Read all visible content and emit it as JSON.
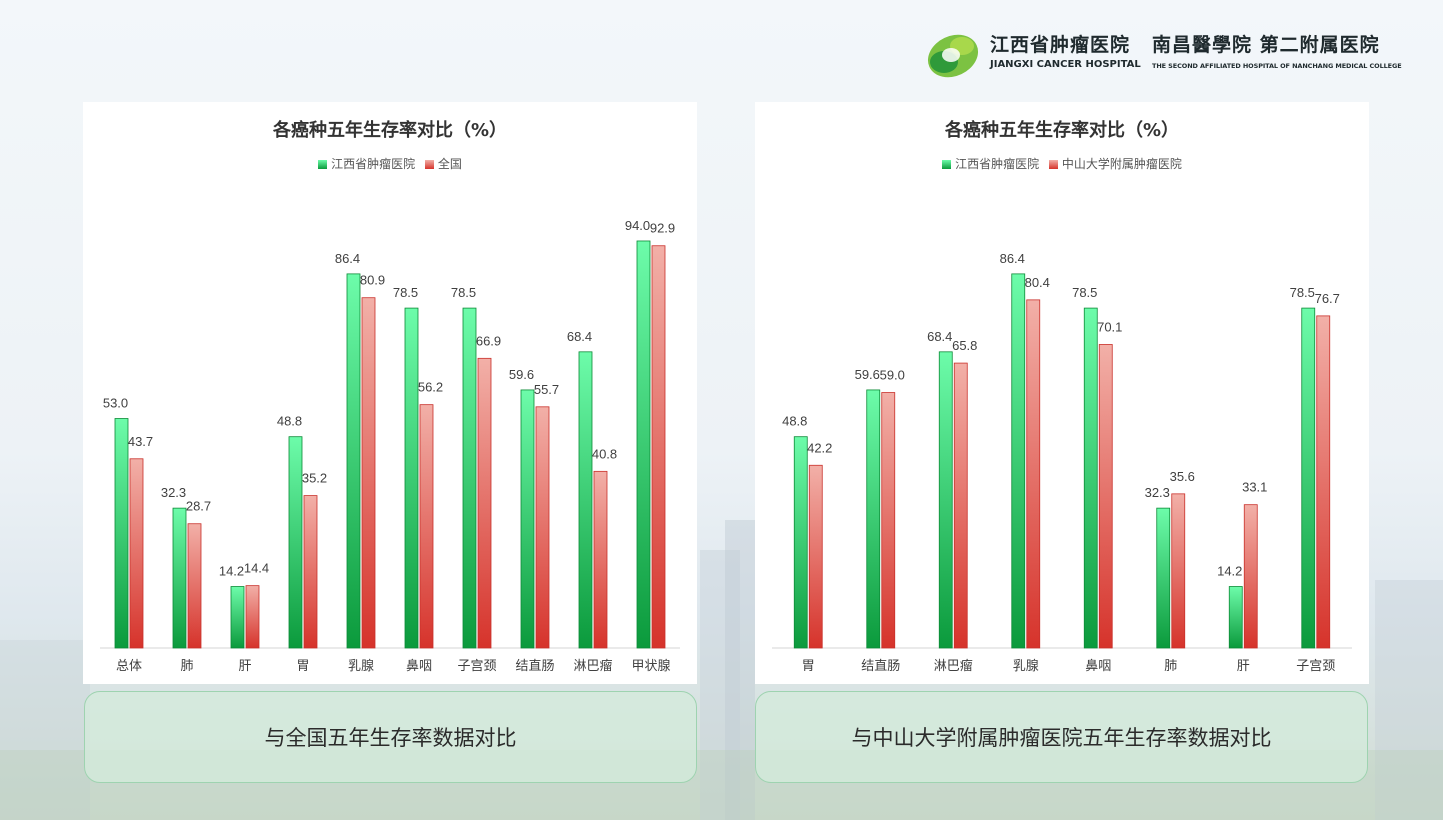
{
  "header": {
    "logo_cn": "江西省肿瘤医院",
    "logo_en": "JIANGXI CANCER HOSPITAL",
    "logo2_cn": "南昌醫學院 第二附属医院",
    "logo2_en": "THE SECOND AFFILIATED HOSPITAL OF NANCHANG MEDICAL COLLEGE"
  },
  "colors": {
    "green_top": "#6dfcaa",
    "green_bottom": "#0b9a3c",
    "red_top": "#f2b0a8",
    "red_bottom": "#d6332b"
  },
  "captions": {
    "left": "与全国五年生存率数据对比",
    "right": "与中山大学附属肿瘤医院五年生存率数据对比"
  },
  "chart_data": [
    {
      "type": "bar",
      "title": "各癌种五年生存率对比（%）",
      "categories": [
        "总体",
        "肺",
        "肝",
        "胃",
        "乳腺",
        "鼻咽",
        "子宫颈",
        "结直肠",
        "淋巴瘤",
        "甲状腺"
      ],
      "series": [
        {
          "name": "江西省肿瘤医院",
          "values": [
            53.0,
            32.3,
            14.2,
            48.8,
            86.4,
            78.5,
            78.5,
            59.6,
            68.4,
            94.0
          ]
        },
        {
          "name": "全国",
          "values": [
            43.7,
            28.7,
            14.4,
            35.2,
            80.9,
            56.2,
            66.9,
            55.7,
            40.8,
            92.9
          ]
        }
      ],
      "ylim": [
        0,
        100
      ],
      "grid": false,
      "legend": "top-center"
    },
    {
      "type": "bar",
      "title": "各癌种五年生存率对比（%）",
      "categories": [
        "胃",
        "结直肠",
        "淋巴瘤",
        "乳腺",
        "鼻咽",
        "肺",
        "肝",
        "子宫颈"
      ],
      "series": [
        {
          "name": "江西省肿瘤医院",
          "values": [
            48.8,
            59.6,
            68.4,
            86.4,
            78.5,
            32.3,
            14.2,
            78.5
          ]
        },
        {
          "name": "中山大学附属肿瘤医院",
          "values": [
            42.2,
            59.0,
            65.8,
            80.4,
            70.1,
            35.6,
            33.1,
            76.7
          ]
        }
      ],
      "ylim": [
        0,
        100
      ],
      "grid": false,
      "legend": "top-center"
    }
  ]
}
